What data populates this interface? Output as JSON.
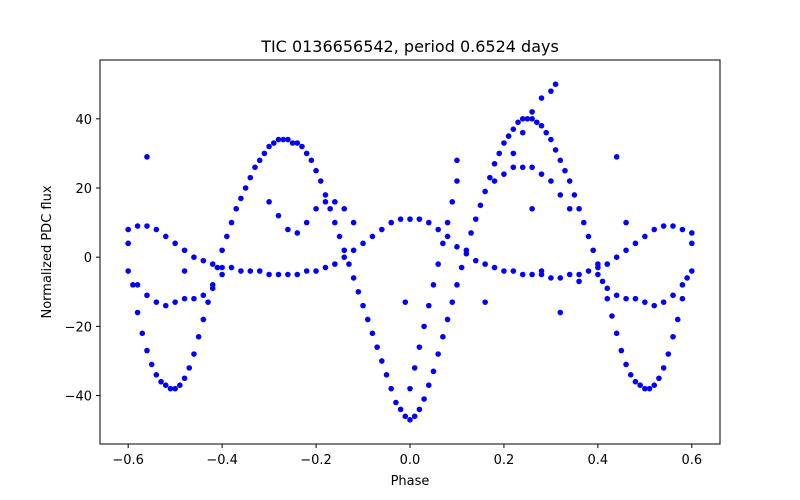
{
  "chart_data": {
    "type": "scatter",
    "title": "TIC 0136656542, period 0.6524 days",
    "xlabel": "Phase",
    "ylabel": "Normalized PDC flux",
    "xlim": [
      -0.66,
      0.66
    ],
    "ylim": [
      -54,
      57
    ],
    "xticks": [
      -0.6,
      -0.4,
      -0.2,
      0.0,
      0.2,
      0.4,
      0.6
    ],
    "xtick_labels": [
      "−0.6",
      "−0.4",
      "−0.2",
      "0.0",
      "0.2",
      "0.4",
      "0.6"
    ],
    "yticks": [
      -40,
      -20,
      0,
      20,
      40
    ],
    "ytick_labels": [
      "−40",
      "−20",
      "0",
      "20",
      "40"
    ],
    "grid": false,
    "marker_color": "#0000ff",
    "series": [
      {
        "values_description_free": true,
        "points": [
          [
            -0.6,
            4
          ],
          [
            -0.59,
            -8
          ],
          [
            -0.58,
            -16
          ],
          [
            -0.57,
            -22
          ],
          [
            -0.56,
            -27
          ],
          [
            -0.55,
            -31
          ],
          [
            -0.54,
            -34
          ],
          [
            -0.53,
            -36
          ],
          [
            -0.52,
            -37
          ],
          [
            -0.51,
            -38
          ],
          [
            -0.5,
            -38
          ],
          [
            -0.49,
            -37
          ],
          [
            -0.48,
            -35
          ],
          [
            -0.47,
            -32
          ],
          [
            -0.46,
            -28
          ],
          [
            -0.45,
            -23
          ],
          [
            -0.44,
            -18
          ],
          [
            -0.43,
            -13
          ],
          [
            -0.42,
            -8
          ],
          [
            -0.41,
            -3
          ],
          [
            -0.4,
            2
          ],
          [
            -0.39,
            6
          ],
          [
            -0.38,
            10
          ],
          [
            -0.37,
            14
          ],
          [
            -0.36,
            17
          ],
          [
            -0.35,
            20
          ],
          [
            -0.34,
            23
          ],
          [
            -0.33,
            26
          ],
          [
            -0.32,
            28
          ],
          [
            -0.31,
            30
          ],
          [
            -0.3,
            32
          ],
          [
            -0.29,
            33
          ],
          [
            -0.28,
            34
          ],
          [
            -0.27,
            34
          ],
          [
            -0.26,
            34
          ],
          [
            -0.25,
            33
          ],
          [
            -0.24,
            33
          ],
          [
            -0.23,
            32
          ],
          [
            -0.22,
            30
          ],
          [
            -0.21,
            28
          ],
          [
            -0.2,
            25
          ],
          [
            -0.19,
            22
          ],
          [
            -0.18,
            18
          ],
          [
            -0.17,
            14
          ],
          [
            -0.16,
            10
          ],
          [
            -0.15,
            6
          ],
          [
            -0.14,
            2
          ],
          [
            -0.13,
            -2
          ],
          [
            -0.12,
            -6
          ],
          [
            -0.11,
            -10
          ],
          [
            -0.1,
            -14
          ],
          [
            -0.09,
            -18
          ],
          [
            -0.08,
            -22
          ],
          [
            -0.07,
            -26
          ],
          [
            -0.06,
            -30
          ],
          [
            -0.05,
            -34
          ],
          [
            -0.04,
            -38
          ],
          [
            -0.03,
            -42
          ],
          [
            -0.02,
            -44
          ],
          [
            -0.01,
            -46
          ],
          [
            0.0,
            -47
          ],
          [
            0.01,
            -46
          ],
          [
            0.02,
            -44
          ],
          [
            0.03,
            -41
          ],
          [
            0.04,
            -37
          ],
          [
            0.05,
            -33
          ],
          [
            0.06,
            -28
          ],
          [
            0.07,
            -23
          ],
          [
            0.08,
            -18
          ],
          [
            0.09,
            -13
          ],
          [
            0.1,
            -8
          ],
          [
            0.11,
            -3
          ],
          [
            0.12,
            2
          ],
          [
            0.13,
            7
          ],
          [
            0.14,
            11
          ],
          [
            0.15,
            15
          ],
          [
            0.16,
            19
          ],
          [
            0.17,
            23
          ],
          [
            0.18,
            27
          ],
          [
            0.19,
            30
          ],
          [
            0.2,
            33
          ],
          [
            0.21,
            35
          ],
          [
            0.22,
            37
          ],
          [
            0.23,
            39
          ],
          [
            0.24,
            40
          ],
          [
            0.25,
            40
          ],
          [
            0.26,
            40
          ],
          [
            0.27,
            39
          ],
          [
            0.28,
            38
          ],
          [
            0.29,
            36
          ],
          [
            0.3,
            34
          ],
          [
            0.31,
            31
          ],
          [
            0.32,
            28
          ],
          [
            0.33,
            25
          ],
          [
            0.34,
            22
          ],
          [
            0.35,
            18
          ],
          [
            0.36,
            14
          ],
          [
            0.37,
            10
          ],
          [
            0.38,
            6
          ],
          [
            0.39,
            2
          ],
          [
            0.4,
            -2
          ],
          [
            0.41,
            -7
          ],
          [
            0.42,
            -12
          ],
          [
            0.43,
            -17
          ],
          [
            0.44,
            -22
          ],
          [
            0.45,
            -27
          ],
          [
            0.46,
            -31
          ],
          [
            0.47,
            -34
          ],
          [
            0.48,
            -36
          ],
          [
            0.49,
            -37
          ],
          [
            0.5,
            -38
          ],
          [
            0.51,
            -38
          ],
          [
            0.52,
            -37
          ],
          [
            0.53,
            -35
          ],
          [
            0.54,
            -32
          ],
          [
            0.55,
            -28
          ],
          [
            0.56,
            -23
          ],
          [
            0.57,
            -18
          ],
          [
            0.58,
            -12
          ],
          [
            0.59,
            -6
          ],
          [
            0.6,
            4
          ],
          [
            -0.6,
            8
          ],
          [
            -0.58,
            9
          ],
          [
            -0.56,
            9
          ],
          [
            -0.54,
            8
          ],
          [
            -0.52,
            6
          ],
          [
            -0.5,
            4
          ],
          [
            -0.48,
            2
          ],
          [
            -0.46,
            0
          ],
          [
            -0.44,
            -1
          ],
          [
            -0.42,
            -2
          ],
          [
            -0.4,
            -3
          ],
          [
            -0.38,
            -3
          ],
          [
            -0.36,
            -4
          ],
          [
            -0.34,
            -4
          ],
          [
            -0.32,
            -4
          ],
          [
            -0.3,
            -5
          ],
          [
            -0.28,
            -5
          ],
          [
            -0.26,
            -5
          ],
          [
            -0.24,
            -5
          ],
          [
            -0.22,
            -4
          ],
          [
            -0.2,
            -4
          ],
          [
            -0.18,
            -3
          ],
          [
            -0.16,
            -2
          ],
          [
            -0.14,
            0
          ],
          [
            -0.12,
            2
          ],
          [
            -0.1,
            4
          ],
          [
            -0.08,
            6
          ],
          [
            -0.06,
            8
          ],
          [
            -0.04,
            10
          ],
          [
            -0.02,
            11
          ],
          [
            0.0,
            11
          ],
          [
            0.02,
            11
          ],
          [
            0.04,
            10
          ],
          [
            0.06,
            8
          ],
          [
            0.08,
            6
          ],
          [
            0.1,
            3
          ],
          [
            0.12,
            1
          ],
          [
            0.14,
            -1
          ],
          [
            0.16,
            -2
          ],
          [
            0.18,
            -3
          ],
          [
            0.2,
            -4
          ],
          [
            0.22,
            -4
          ],
          [
            0.24,
            -5
          ],
          [
            0.26,
            -5
          ],
          [
            0.28,
            -5
          ],
          [
            0.3,
            -6
          ],
          [
            0.32,
            -6
          ],
          [
            0.34,
            -5
          ],
          [
            0.36,
            -5
          ],
          [
            0.38,
            -4
          ],
          [
            0.4,
            -3
          ],
          [
            0.42,
            -2
          ],
          [
            0.44,
            0
          ],
          [
            0.46,
            2
          ],
          [
            0.48,
            4
          ],
          [
            0.5,
            6
          ],
          [
            0.52,
            8
          ],
          [
            0.54,
            9
          ],
          [
            0.56,
            9
          ],
          [
            0.58,
            8
          ],
          [
            0.6,
            7
          ],
          [
            -0.6,
            -4
          ],
          [
            -0.58,
            -8
          ],
          [
            -0.56,
            -11
          ],
          [
            -0.54,
            -13
          ],
          [
            -0.52,
            -14
          ],
          [
            -0.5,
            -13
          ],
          [
            -0.48,
            -12
          ],
          [
            -0.46,
            -12
          ],
          [
            -0.44,
            -11
          ],
          [
            -0.42,
            -9
          ],
          [
            -0.4,
            -5
          ],
          [
            0.4,
            -5
          ],
          [
            0.42,
            -9
          ],
          [
            0.44,
            -11
          ],
          [
            0.46,
            -12
          ],
          [
            0.48,
            -12
          ],
          [
            0.5,
            -13
          ],
          [
            0.52,
            -14
          ],
          [
            0.54,
            -13
          ],
          [
            0.56,
            -11
          ],
          [
            0.58,
            -8
          ],
          [
            0.6,
            -4
          ],
          [
            -0.3,
            16
          ],
          [
            -0.28,
            12
          ],
          [
            -0.26,
            8
          ],
          [
            -0.24,
            7
          ],
          [
            -0.22,
            10
          ],
          [
            -0.2,
            14
          ],
          [
            -0.18,
            16
          ],
          [
            -0.16,
            16
          ],
          [
            -0.14,
            14
          ],
          [
            -0.12,
            10
          ],
          [
            0.18,
            22
          ],
          [
            0.2,
            24
          ],
          [
            0.22,
            26
          ],
          [
            0.24,
            26
          ],
          [
            0.26,
            26
          ],
          [
            0.28,
            24
          ],
          [
            0.3,
            22
          ],
          [
            0.32,
            18
          ],
          [
            0.34,
            14
          ],
          [
            0.0,
            -38
          ],
          [
            0.01,
            -32
          ],
          [
            0.02,
            -26
          ],
          [
            0.03,
            -20
          ],
          [
            0.04,
            -14
          ],
          [
            0.05,
            -8
          ],
          [
            0.06,
            -2
          ],
          [
            0.07,
            4
          ],
          [
            0.08,
            10
          ],
          [
            0.09,
            16
          ],
          [
            0.1,
            22
          ],
          [
            0.1,
            28
          ],
          [
            0.22,
            30
          ],
          [
            0.24,
            36
          ],
          [
            0.26,
            42
          ],
          [
            0.28,
            46
          ],
          [
            0.3,
            48
          ],
          [
            0.31,
            50
          ],
          [
            -0.56,
            29
          ],
          [
            0.44,
            29
          ],
          [
            -0.01,
            -13
          ],
          [
            0.16,
            -13
          ],
          [
            -0.48,
            -4
          ],
          [
            0.28,
            -4
          ],
          [
            0.32,
            -16
          ],
          [
            0.26,
            14
          ],
          [
            0.36,
            -7
          ],
          [
            0.46,
            10
          ]
        ]
      }
    ]
  }
}
